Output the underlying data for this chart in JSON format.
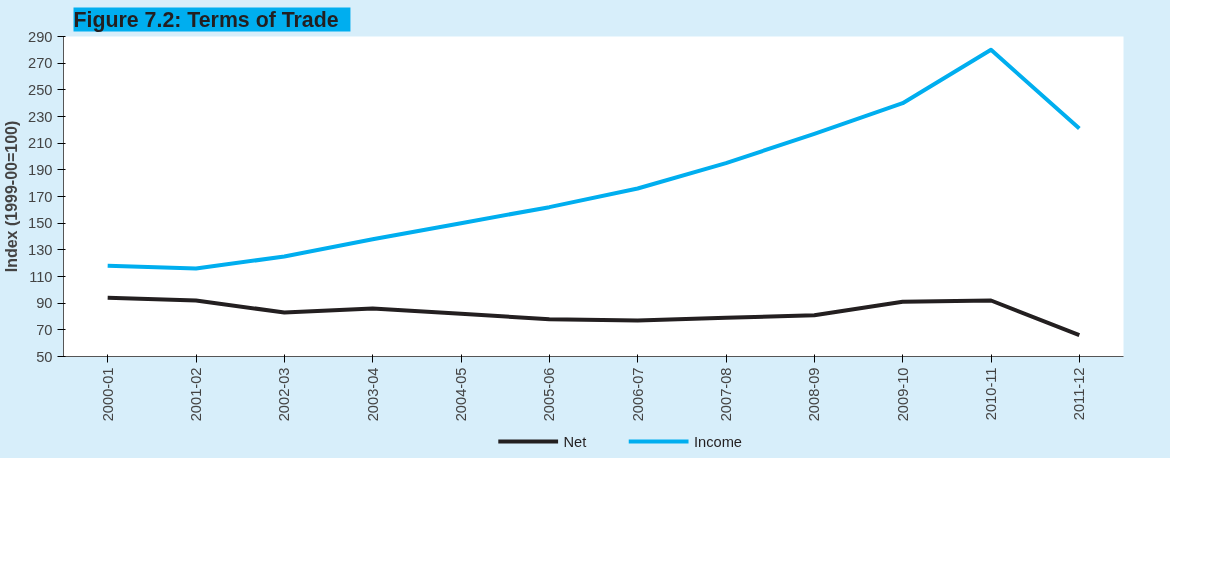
{
  "chart_data": {
    "type": "line",
    "title": "Figure 7.2:   Terms of Trade",
    "ylabel": "Index (1999-00=100)",
    "categories": [
      "2000-01",
      "2001-02",
      "2002-03",
      "2003-04",
      "2004-05",
      "2005-06",
      "2006-07",
      "2007-08",
      "2008-09",
      "2009-10",
      "2010-11",
      "2011-12"
    ],
    "series": [
      {
        "name": "Net",
        "color": "#231f20",
        "values": [
          94,
          92,
          83,
          86,
          82,
          78,
          77,
          79,
          81,
          91,
          92,
          66
        ]
      },
      {
        "name": "Income",
        "color": "#00aeef",
        "values": [
          118,
          116,
          125,
          138,
          150,
          162,
          176,
          195,
          217,
          240,
          280,
          221
        ]
      }
    ],
    "ylim": [
      50,
      290
    ],
    "yticks": [
      50,
      70,
      90,
      110,
      130,
      150,
      170,
      190,
      210,
      230,
      250,
      270,
      290
    ],
    "grid": false,
    "legend": "bottom",
    "marker": "none",
    "line_style": "solid"
  }
}
